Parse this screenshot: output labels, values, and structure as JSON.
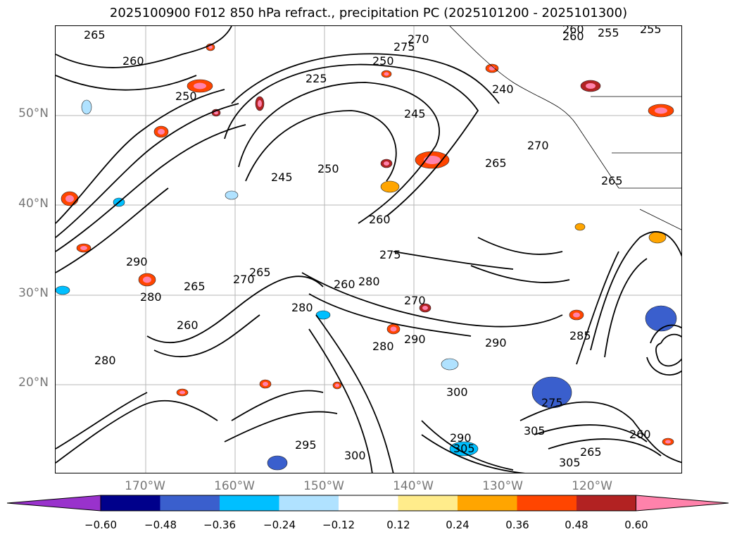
{
  "title": "2025100900 F012 850 hPa refract., precipitation PC (2025101200 - 2025101300)",
  "latitude_labels": [
    "50°N",
    "40°N",
    "30°N",
    "20°N"
  ],
  "longitude_labels": [
    "170°W",
    "160°W",
    "150°W",
    "140°W",
    "130°W",
    "120°W"
  ],
  "colorbar": {
    "tick_labels": [
      "−0.60",
      "−0.48",
      "−0.36",
      "−0.24",
      "−0.12",
      "0.12",
      "0.24",
      "0.36",
      "0.48",
      "0.60"
    ],
    "colors": [
      "#9932cc",
      "#00008b",
      "#3a5fcd",
      "#00bfff",
      "#b0e2ff",
      "#ffffff",
      "#ffec8b",
      "#ffa500",
      "#ff4500",
      "#b22222",
      "#ff82ab"
    ]
  },
  "contour_labels": [
    "265",
    "260",
    "250",
    "225",
    "250",
    "275",
    "270",
    "255",
    "260",
    "240",
    "245",
    "270",
    "265",
    "250",
    "245",
    "260",
    "260",
    "255",
    "275",
    "265",
    "280",
    "290",
    "280",
    "265",
    "270",
    "260",
    "280",
    "290",
    "280",
    "285",
    "290",
    "300",
    "305",
    "275",
    "270",
    "280",
    "265",
    "260",
    "295",
    "300",
    "290",
    "265",
    "260",
    "305",
    "305"
  ]
}
